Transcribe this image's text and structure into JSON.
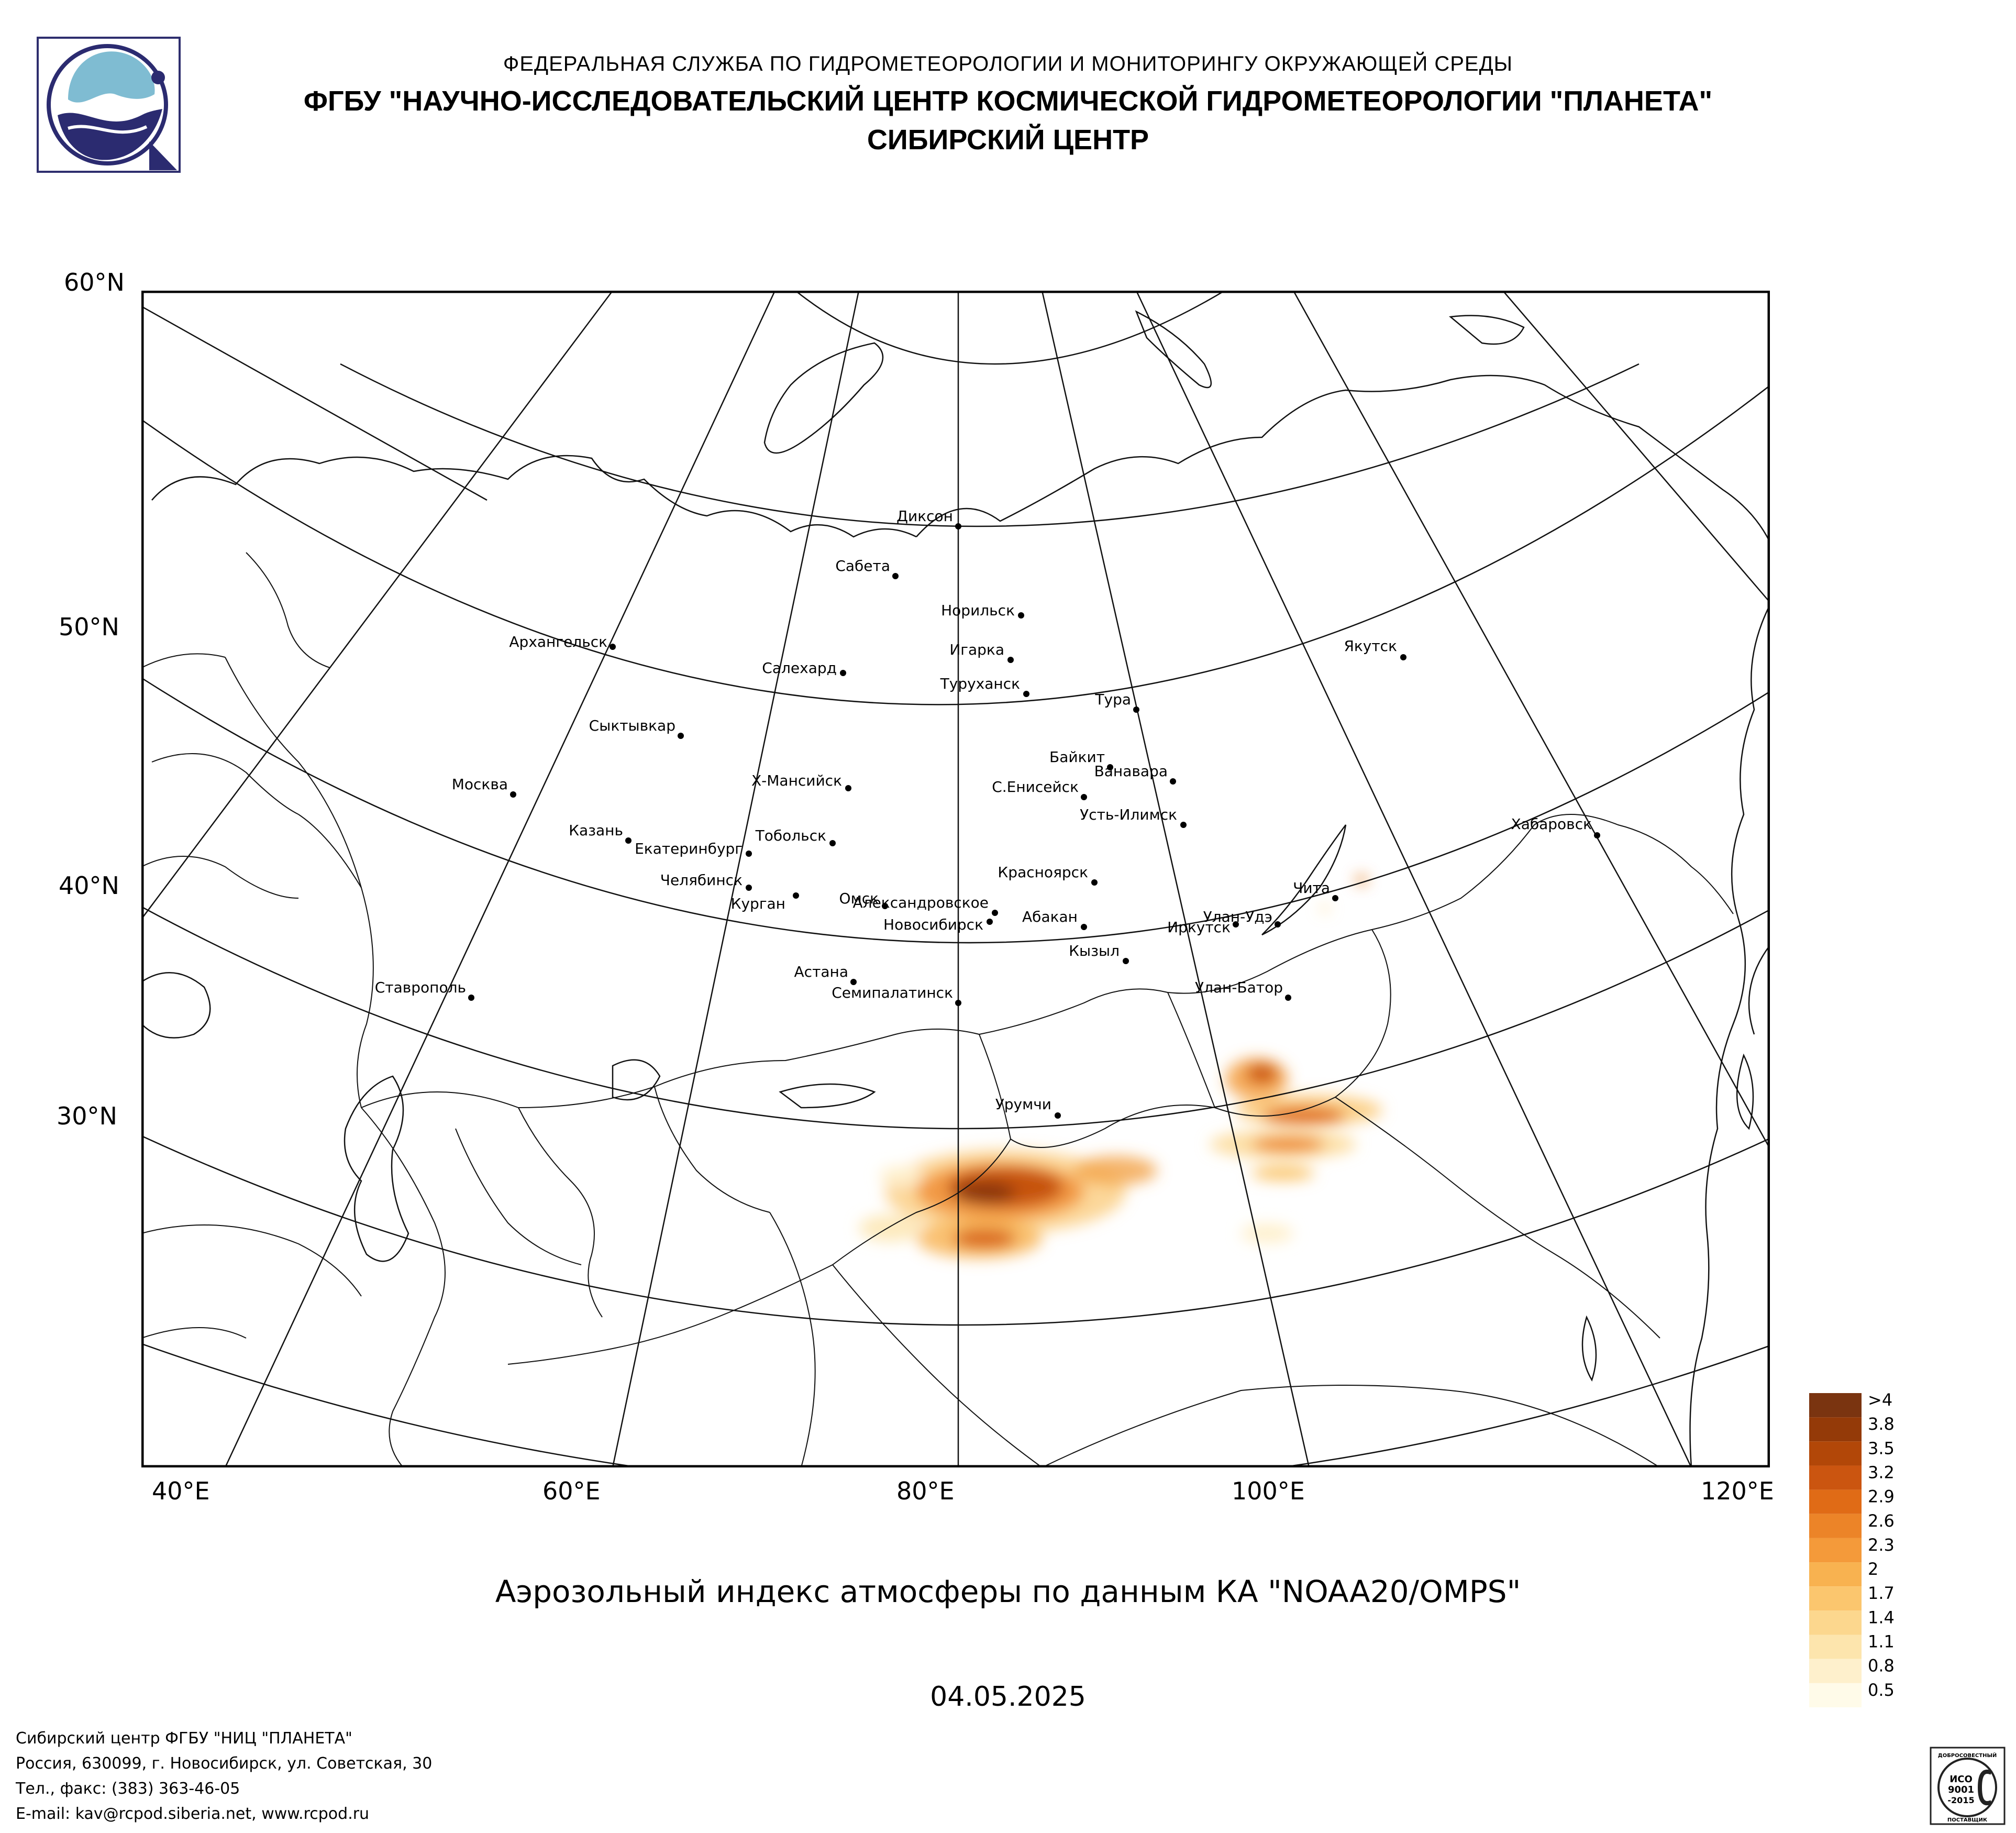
{
  "header": {
    "line1": "ФЕДЕРАЛЬНАЯ СЛУЖБА ПО ГИДРОМЕТЕОРОЛОГИИ И МОНИТОРИНГУ ОКРУЖАЮЩЕЙ СРЕДЫ",
    "line2": "ФГБУ \"НАУЧНО-ИССЛЕДОВАТЕЛЬСКИЙ ЦЕНТР КОСМИЧЕСКОЙ ГИДРОМЕТЕОРОЛОГИИ \"ПЛАНЕТА\"",
    "line3": "СИБИРСКИЙ ЦЕНТР"
  },
  "logo": {
    "icon": "planeta-logo-icon",
    "colors": {
      "frame": "#2e2e6e",
      "water": "#7fbcd2",
      "dark": "#2b2b70"
    }
  },
  "map": {
    "lat_labels": [
      "60°N",
      "50°N",
      "40°N",
      "30°N"
    ],
    "lon_labels": [
      "40°E",
      "60°E",
      "80°E",
      "100°E",
      "120°E"
    ],
    "cities": [
      {
        "name": "Диксон"
      },
      {
        "name": "Сабета"
      },
      {
        "name": "Норильск"
      },
      {
        "name": "Игарка"
      },
      {
        "name": "Салехард"
      },
      {
        "name": "Туруханск"
      },
      {
        "name": "Архангельск"
      },
      {
        "name": "Тура"
      },
      {
        "name": "Якутск"
      },
      {
        "name": "Сыктывкар"
      },
      {
        "name": "Байкит"
      },
      {
        "name": "Ванавара"
      },
      {
        "name": "Х-Мансийск"
      },
      {
        "name": "С.Енисейск"
      },
      {
        "name": "Москва"
      },
      {
        "name": "Усть-Илимск"
      },
      {
        "name": "Казань"
      },
      {
        "name": "Тобольск"
      },
      {
        "name": "Екатеринбург"
      },
      {
        "name": "Хабаровск"
      },
      {
        "name": "Челябинск"
      },
      {
        "name": "Красноярск"
      },
      {
        "name": "Чита"
      },
      {
        "name": "Александровское"
      },
      {
        "name": "Курган"
      },
      {
        "name": "Омск"
      },
      {
        "name": "Новосибирск"
      },
      {
        "name": "Абакан"
      },
      {
        "name": "Улан-Удэ"
      },
      {
        "name": "Иркутск"
      },
      {
        "name": "Кызыл"
      },
      {
        "name": "Астана"
      },
      {
        "name": "Ставрополь"
      },
      {
        "name": "Семипалатинск"
      },
      {
        "name": "Улан-Батор"
      },
      {
        "name": "Урумчи"
      }
    ]
  },
  "legend": {
    "labels": [
      ">4",
      "3.8",
      "3.5",
      "3.2",
      "2.9",
      "2.6",
      "2.3",
      "2",
      "1.7",
      "1.4",
      "1.1",
      "0.8",
      "0.5"
    ],
    "colors": [
      "#7a3410",
      "#943a08",
      "#b24708",
      "#cb5510",
      "#e06b16",
      "#ec8428",
      "#f49a3a",
      "#f8b250",
      "#fbc66e",
      "#fcd78e",
      "#fde5ad",
      "#fef0cc",
      "#fffbe9"
    ]
  },
  "subtitle": "Аэрозольный индекс атмосферы по данным КА \"NOAA20/OMPS\"",
  "date": "04.05.2025",
  "footer": {
    "line1": "Сибирский центр ФГБУ \"НИЦ \"ПЛАНЕТА\"",
    "line2": "Россия, 630099, г. Новосибирск, ул. Советская, 30",
    "line3": "Тел., факс: (383) 363-46-05",
    "line4": "E-mail: kav@rcpod.siberia.net, www.rcpod.ru"
  },
  "certification": {
    "icon": "iso-9001-certification-icon",
    "top_text": "ДОБРОСОВЕСТНЫЙ",
    "line1": "ИСО",
    "line2": "9001",
    "line3": "-2015",
    "bottom_text": "ПОСТАВЩИК"
  }
}
